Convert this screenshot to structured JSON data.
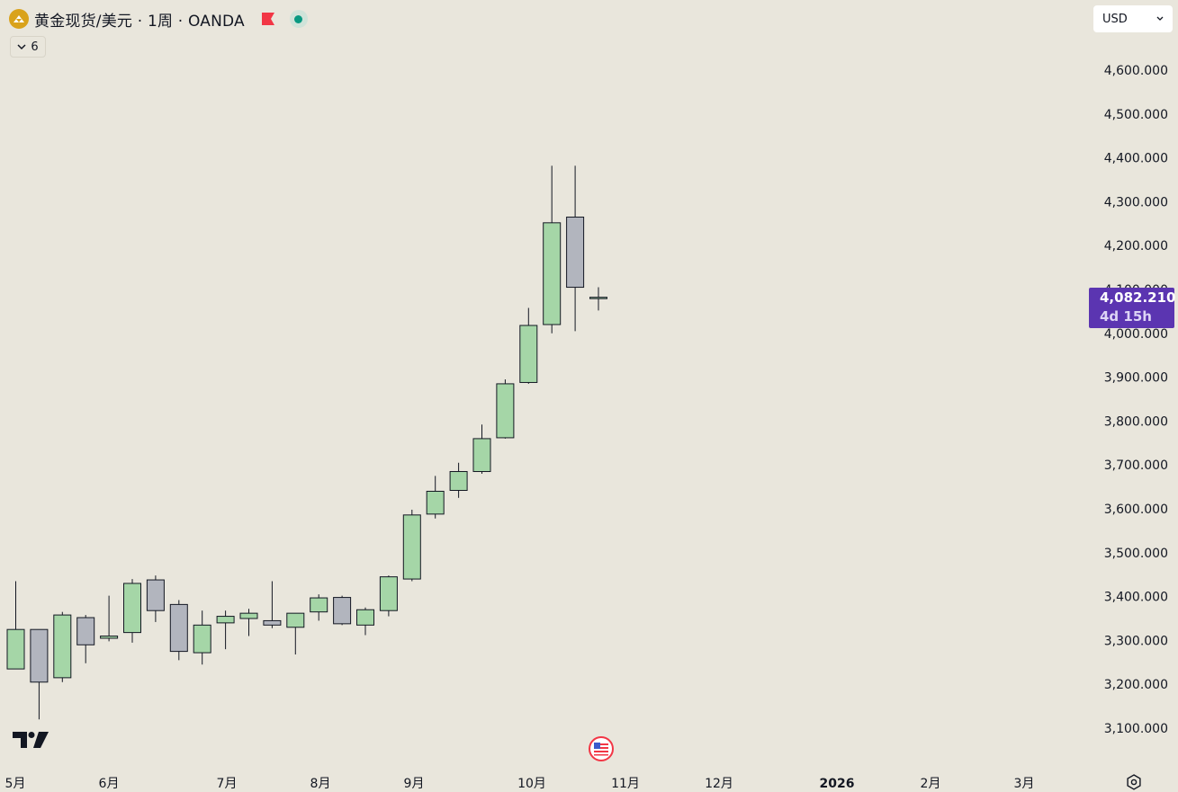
{
  "header": {
    "symbol_title": "黄金现货/美元 · 1周 · OANDA",
    "icon": "gold-coin-icon",
    "flag_icon": "red-flag-icon",
    "status_icon": "market-open-dot-icon"
  },
  "collapse": {
    "count": "6"
  },
  "currency": {
    "label": "USD"
  },
  "last_price": {
    "price": "4,082.210",
    "countdown": "4d 15h"
  },
  "colors": {
    "up": "#a5d6a7",
    "down": "#b2b5be",
    "wick": "#131722",
    "background": "#e9e6dc",
    "price_tag": "#5b35b1"
  },
  "chart_data": {
    "type": "candlestick",
    "title": "",
    "interval": "1W",
    "x_tick_labels": [
      "5月",
      "6月",
      "7月",
      "8月",
      "9月",
      "10月",
      "11月",
      "12月",
      "2026",
      "2月",
      "3月"
    ],
    "y_tick_labels": [
      "4,600.000",
      "4,500.000",
      "4,400.000",
      "4,300.000",
      "4,200.000",
      "4,100.000",
      "4,000.000",
      "3,900.000",
      "3,800.000",
      "3,700.000",
      "3,600.000",
      "3,500.000",
      "3,400.000",
      "3,300.000",
      "3,200.000",
      "3,100.000"
    ],
    "y_ticks": [
      4600,
      4500,
      4400,
      4300,
      4200,
      4100,
      4000,
      3900,
      3800,
      3700,
      3600,
      3500,
      3400,
      3300,
      3200,
      3100
    ],
    "ylim": [
      3060,
      4720
    ],
    "candles": [
      {
        "week": 0,
        "open": 3235,
        "high": 3435,
        "low": 3235,
        "close": 3325
      },
      {
        "week": 1,
        "open": 3325,
        "high": 3325,
        "low": 3120,
        "close": 3205
      },
      {
        "week": 2,
        "open": 3215,
        "high": 3365,
        "low": 3205,
        "close": 3358
      },
      {
        "week": 3,
        "open": 3352,
        "high": 3358,
        "low": 3248,
        "close": 3290
      },
      {
        "week": 4,
        "open": 3305,
        "high": 3402,
        "low": 3298,
        "close": 3310
      },
      {
        "week": 5,
        "open": 3318,
        "high": 3440,
        "low": 3295,
        "close": 3430
      },
      {
        "week": 6,
        "open": 3438,
        "high": 3448,
        "low": 3342,
        "close": 3368
      },
      {
        "week": 7,
        "open": 3382,
        "high": 3392,
        "low": 3255,
        "close": 3275
      },
      {
        "week": 8,
        "open": 3272,
        "high": 3368,
        "low": 3245,
        "close": 3335
      },
      {
        "week": 9,
        "open": 3340,
        "high": 3368,
        "low": 3280,
        "close": 3355
      },
      {
        "week": 10,
        "open": 3350,
        "high": 3372,
        "low": 3310,
        "close": 3362
      },
      {
        "week": 11,
        "open": 3345,
        "high": 3435,
        "low": 3328,
        "close": 3335
      },
      {
        "week": 12,
        "open": 3330,
        "high": 3362,
        "low": 3268,
        "close": 3362
      },
      {
        "week": 13,
        "open": 3365,
        "high": 3405,
        "low": 3345,
        "close": 3397
      },
      {
        "week": 14,
        "open": 3398,
        "high": 3402,
        "low": 3335,
        "close": 3338
      },
      {
        "week": 15,
        "open": 3335,
        "high": 3375,
        "low": 3312,
        "close": 3370
      },
      {
        "week": 16,
        "open": 3368,
        "high": 3448,
        "low": 3355,
        "close": 3445
      },
      {
        "week": 17,
        "open": 3440,
        "high": 3598,
        "low": 3435,
        "close": 3586
      },
      {
        "week": 18,
        "open": 3588,
        "high": 3675,
        "low": 3578,
        "close": 3640
      },
      {
        "week": 19,
        "open": 3642,
        "high": 3705,
        "low": 3625,
        "close": 3685
      },
      {
        "week": 20,
        "open": 3685,
        "high": 3792,
        "low": 3680,
        "close": 3760
      },
      {
        "week": 21,
        "open": 3762,
        "high": 3895,
        "low": 3760,
        "close": 3885
      },
      {
        "week": 22,
        "open": 3888,
        "high": 4058,
        "low": 3885,
        "close": 4018
      },
      {
        "week": 23,
        "open": 4020,
        "high": 4382,
        "low": 4000,
        "close": 4252
      },
      {
        "week": 24,
        "open": 4265,
        "high": 4382,
        "low": 4005,
        "close": 4105
      },
      {
        "week": 25,
        "open": 4080,
        "high": 4105,
        "low": 4052,
        "close": 4082.21
      }
    ]
  }
}
